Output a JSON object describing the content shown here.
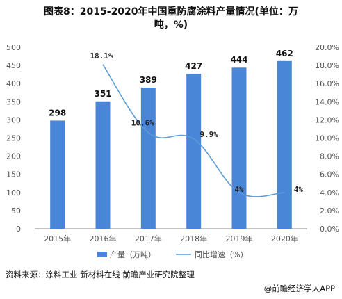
{
  "title_line1": "图表8：2015-2020年中国重防腐涂料产量情况(单位：万",
  "title_line2": "吨，%)",
  "source": "资料来源：涂料工业 新材料在线 前瞻产业研究院整理",
  "footer": "@前瞻经济学人APP",
  "colors": {
    "bar": "#4a86d8",
    "line": "#5b9bd5",
    "axis": "#888888",
    "grid": "#d9d9d9"
  },
  "chart_data": {
    "type": "bar",
    "categories": [
      "2015年",
      "2016年",
      "2017年",
      "2018年",
      "2019年",
      "2020年"
    ],
    "series": [
      {
        "name": "产量（万吨）",
        "type": "bar",
        "axis": "left",
        "values": [
          298,
          351,
          389,
          427,
          444,
          462
        ],
        "labels": [
          "298",
          "351",
          "389",
          "427",
          "444",
          "462"
        ]
      },
      {
        "name": "同比增速（%）",
        "type": "line",
        "axis": "right",
        "values": [
          null,
          18.1,
          10.6,
          9.9,
          4,
          4
        ],
        "labels": [
          "",
          "18.1%",
          "10.6%",
          "9.9%",
          "4%",
          "4%"
        ]
      }
    ],
    "left_axis": {
      "min": 0,
      "max": 500,
      "ticks": [
        "0",
        "50",
        "100",
        "150",
        "200",
        "250",
        "300",
        "350",
        "400",
        "450",
        "500"
      ]
    },
    "right_axis": {
      "min": 0,
      "max": 20,
      "ticks": [
        "0.0%",
        "2.0%",
        "4.0%",
        "6.0%",
        "8.0%",
        "10.0%",
        "12.0%",
        "14.0%",
        "16.0%",
        "18.0%",
        "20.0%"
      ]
    },
    "legend": {
      "placement": "bottom",
      "items": [
        "产量（万吨）",
        "同比增速（%）"
      ]
    },
    "grid": false
  }
}
